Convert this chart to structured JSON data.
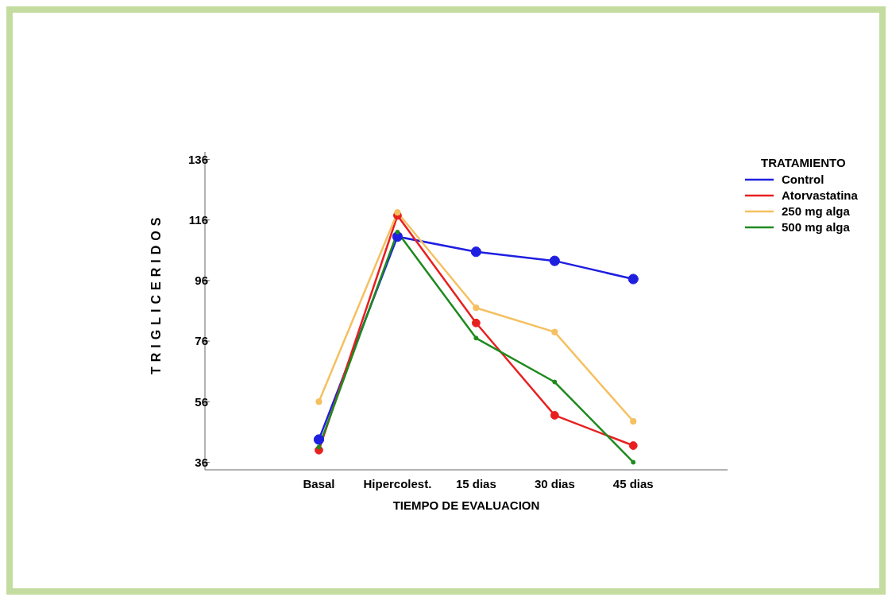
{
  "chart_data": {
    "type": "line",
    "xlabel": "TIEMPO DE EVALUACION",
    "ylabel": "TRIGLICERIDOS",
    "legend_title": "TRATAMIENTO",
    "categories": [
      "Basal",
      "Hipercolest.",
      "15 dias",
      "30 dias",
      "45 dias"
    ],
    "series": [
      {
        "name": "Control",
        "color": "#1f1fe0",
        "values": [
          43.5,
          110.5,
          105.5,
          102.5,
          96.5
        ]
      },
      {
        "name": "Atorvastatina",
        "color": "#e82020",
        "values": [
          40,
          117.5,
          82,
          51.5,
          41.5
        ]
      },
      {
        "name": "250 mg alga",
        "color": "#f5c060",
        "values": [
          56,
          118.5,
          87,
          79,
          49.5
        ]
      },
      {
        "name": "500 mg alga",
        "color": "#1e8a1e",
        "values": [
          41,
          112,
          77,
          62.5,
          36
        ]
      }
    ],
    "ylim": [
      33.5,
      138.5
    ],
    "yticks": [
      36,
      56,
      76,
      96,
      116,
      136
    ],
    "grid": false,
    "legend": "right",
    "marker": "circle",
    "line_style": "solid"
  }
}
